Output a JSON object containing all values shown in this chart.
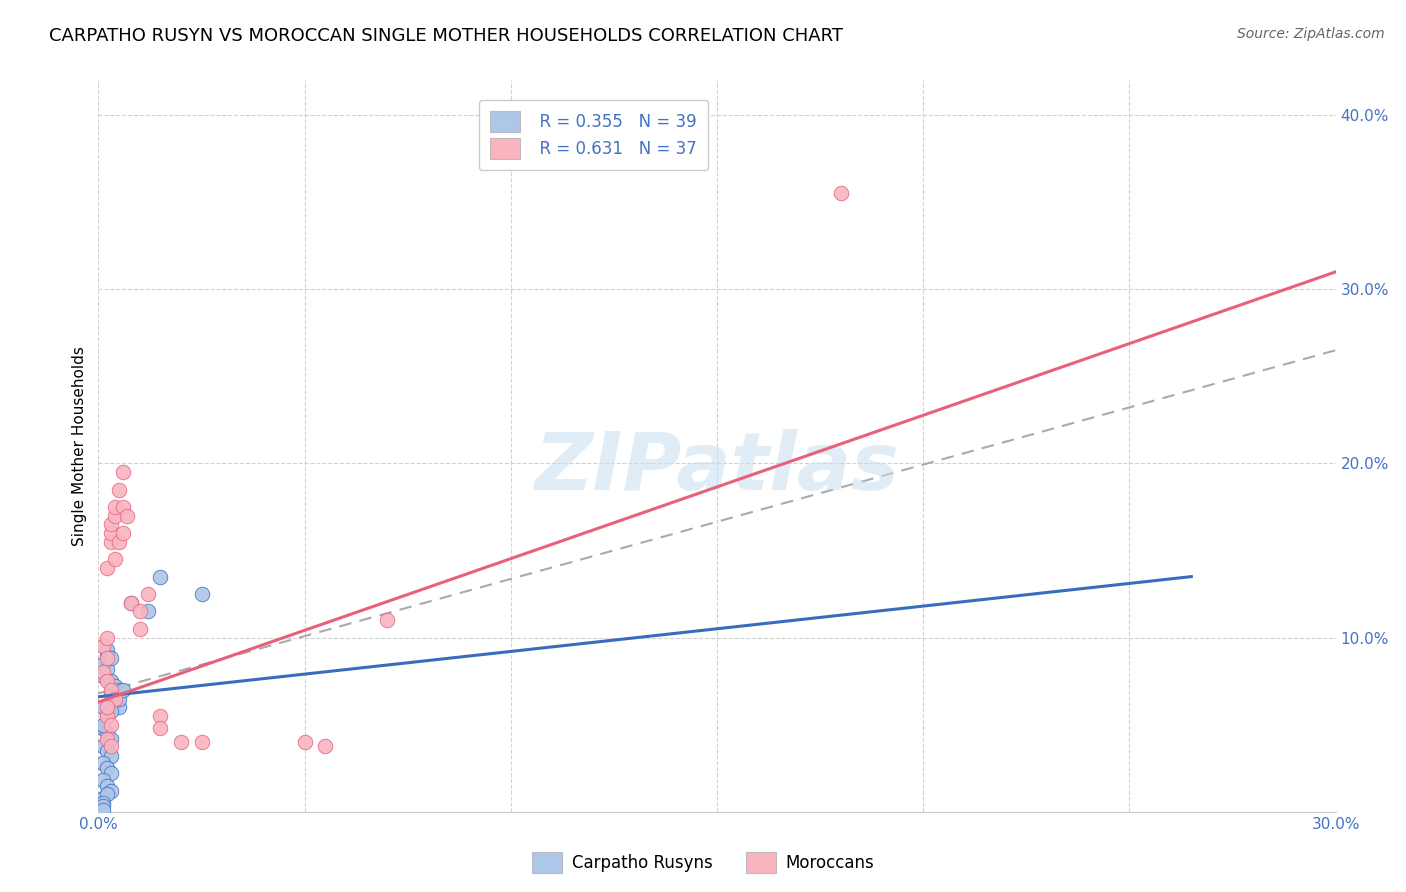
{
  "title": "CARPATHO RUSYN VS MOROCCAN SINGLE MOTHER HOUSEHOLDS CORRELATION CHART",
  "source": "Source: ZipAtlas.com",
  "ylabel": "Single Mother Households",
  "xlim": [
    0,
    0.3
  ],
  "ylim": [
    0,
    0.42
  ],
  "xticks": [
    0.0,
    0.05,
    0.1,
    0.15,
    0.2,
    0.25,
    0.3
  ],
  "yticks": [
    0.0,
    0.1,
    0.2,
    0.3,
    0.4
  ],
  "legend_blue_r": "R = 0.355",
  "legend_blue_n": "N = 39",
  "legend_pink_r": "R = 0.631",
  "legend_pink_n": "N = 37",
  "legend_label_blue": "Carpatho Rusyns",
  "legend_label_pink": "Moroccans",
  "watermark": "ZIPatlas",
  "blue_color": "#aec6e8",
  "pink_color": "#f9b4c0",
  "blue_line_color": "#3a6bbf",
  "pink_line_color": "#e8607a",
  "dash_color": "#aaaaaa",
  "blue_line": [
    [
      0.0,
      0.066
    ],
    [
      0.265,
      0.135
    ]
  ],
  "pink_line": [
    [
      0.0,
      0.063
    ],
    [
      0.3,
      0.31
    ]
  ],
  "dash_line": [
    [
      0.0,
      0.068
    ],
    [
      0.3,
      0.265
    ]
  ],
  "blue_scatter": [
    [
      0.001,
      0.085
    ],
    [
      0.001,
      0.078
    ],
    [
      0.002,
      0.09
    ],
    [
      0.002,
      0.082
    ],
    [
      0.003,
      0.075
    ],
    [
      0.003,
      0.068
    ],
    [
      0.004,
      0.072
    ],
    [
      0.004,
      0.065
    ],
    [
      0.005,
      0.07
    ],
    [
      0.005,
      0.06
    ],
    [
      0.001,
      0.06
    ],
    [
      0.002,
      0.055
    ],
    [
      0.003,
      0.058
    ],
    [
      0.001,
      0.048
    ],
    [
      0.002,
      0.045
    ],
    [
      0.003,
      0.042
    ],
    [
      0.001,
      0.038
    ],
    [
      0.002,
      0.035
    ],
    [
      0.003,
      0.032
    ],
    [
      0.001,
      0.028
    ],
    [
      0.002,
      0.025
    ],
    [
      0.003,
      0.022
    ],
    [
      0.001,
      0.018
    ],
    [
      0.002,
      0.015
    ],
    [
      0.003,
      0.012
    ],
    [
      0.001,
      0.008
    ],
    [
      0.002,
      0.01
    ],
    [
      0.001,
      0.005
    ],
    [
      0.001,
      0.003
    ],
    [
      0.001,
      0.001
    ],
    [
      0.008,
      0.12
    ],
    [
      0.015,
      0.135
    ],
    [
      0.002,
      0.093
    ],
    [
      0.003,
      0.088
    ],
    [
      0.005,
      0.065
    ],
    [
      0.006,
      0.07
    ],
    [
      0.012,
      0.115
    ],
    [
      0.025,
      0.125
    ],
    [
      0.001,
      0.05
    ]
  ],
  "pink_scatter": [
    [
      0.001,
      0.095
    ],
    [
      0.002,
      0.1
    ],
    [
      0.002,
      0.14
    ],
    [
      0.003,
      0.155
    ],
    [
      0.003,
      0.16
    ],
    [
      0.003,
      0.165
    ],
    [
      0.004,
      0.145
    ],
    [
      0.004,
      0.17
    ],
    [
      0.004,
      0.175
    ],
    [
      0.005,
      0.155
    ],
    [
      0.005,
      0.185
    ],
    [
      0.006,
      0.16
    ],
    [
      0.006,
      0.175
    ],
    [
      0.006,
      0.195
    ],
    [
      0.007,
      0.17
    ],
    [
      0.001,
      0.08
    ],
    [
      0.002,
      0.075
    ],
    [
      0.002,
      0.088
    ],
    [
      0.003,
      0.07
    ],
    [
      0.004,
      0.065
    ],
    [
      0.008,
      0.12
    ],
    [
      0.01,
      0.115
    ],
    [
      0.012,
      0.125
    ],
    [
      0.002,
      0.055
    ],
    [
      0.003,
      0.05
    ],
    [
      0.002,
      0.042
    ],
    [
      0.003,
      0.038
    ],
    [
      0.015,
      0.055
    ],
    [
      0.015,
      0.048
    ],
    [
      0.02,
      0.04
    ],
    [
      0.025,
      0.04
    ],
    [
      0.05,
      0.04
    ],
    [
      0.055,
      0.038
    ],
    [
      0.07,
      0.11
    ],
    [
      0.18,
      0.355
    ],
    [
      0.002,
      0.06
    ],
    [
      0.01,
      0.105
    ]
  ]
}
